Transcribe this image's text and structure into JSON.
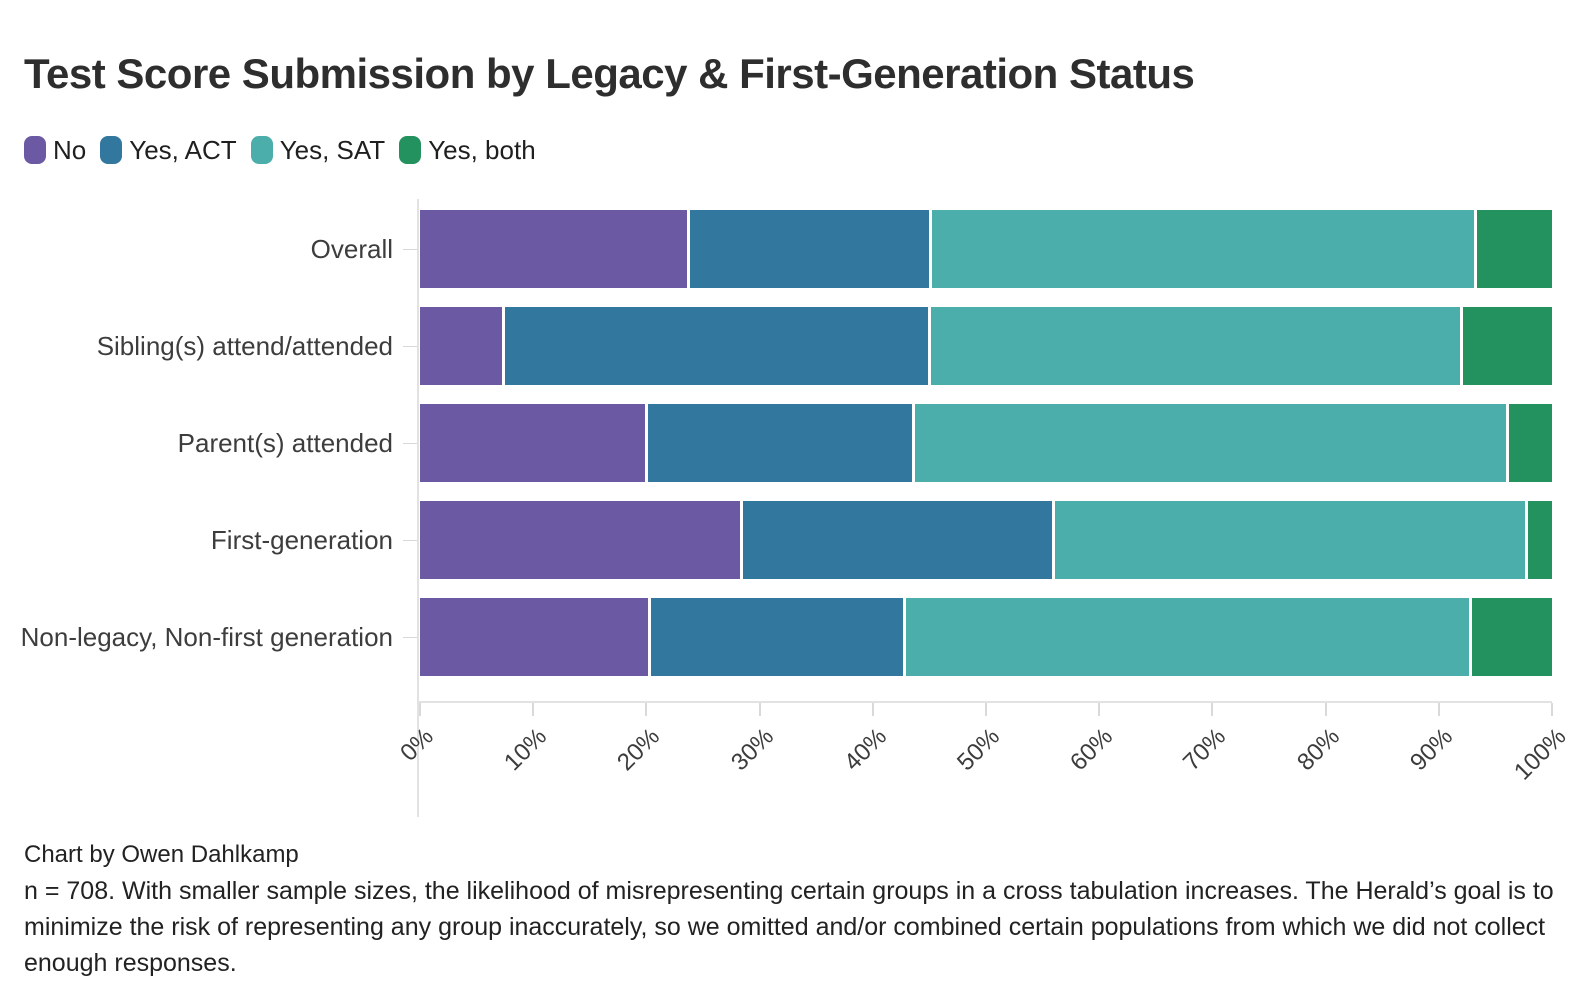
{
  "title": "Test Score Submission by Legacy & First-Generation Status",
  "legend": [
    {
      "label": "No",
      "color": "#6c59a4"
    },
    {
      "label": "Yes, ACT",
      "color": "#32779e"
    },
    {
      "label": "Yes, SAT",
      "color": "#4caeab"
    },
    {
      "label": "Yes, both",
      "color": "#23925f"
    }
  ],
  "chart_data": {
    "type": "bar",
    "variant": "horizontal-stacked-100pct",
    "title": "Test Score Submission by Legacy & First-Generation Status",
    "categories": [
      "Overall",
      "Sibling(s) attend/attended",
      "Parent(s) attended",
      "First-generation",
      "Non-legacy, Non-first generation"
    ],
    "series": [
      {
        "name": "No",
        "color": "#6c59a4",
        "values": [
          23.8,
          7.3,
          20.0,
          28.5,
          20.3
        ]
      },
      {
        "name": "Yes, ACT",
        "color": "#32779e",
        "values": [
          21.3,
          37.7,
          23.5,
          27.5,
          22.4
        ]
      },
      {
        "name": "Yes, SAT",
        "color": "#4caeab",
        "values": [
          48.2,
          47.1,
          52.7,
          41.9,
          50.2
        ]
      },
      {
        "name": "Yes, both",
        "color": "#23925f",
        "values": [
          6.7,
          7.9,
          3.8,
          2.1,
          7.1
        ]
      }
    ],
    "x_ticks": [
      "0%",
      "10%",
      "20%",
      "30%",
      "40%",
      "50%",
      "60%",
      "70%",
      "80%",
      "90%",
      "100%"
    ],
    "xlim": [
      0,
      100
    ],
    "xlabel": "",
    "ylabel": "",
    "legend_position": "top",
    "grid": false
  },
  "footer": {
    "credit": "Chart by Owen Dahlkamp",
    "note": "n = 708. With smaller sample sizes, the likelihood of misrepresenting certain groups in a cross tabulation increases. The Herald’s goal is to minimize the risk of representing any group inaccurately, so we omitted and/or combined certain populations from which we did not collect enough responses."
  }
}
